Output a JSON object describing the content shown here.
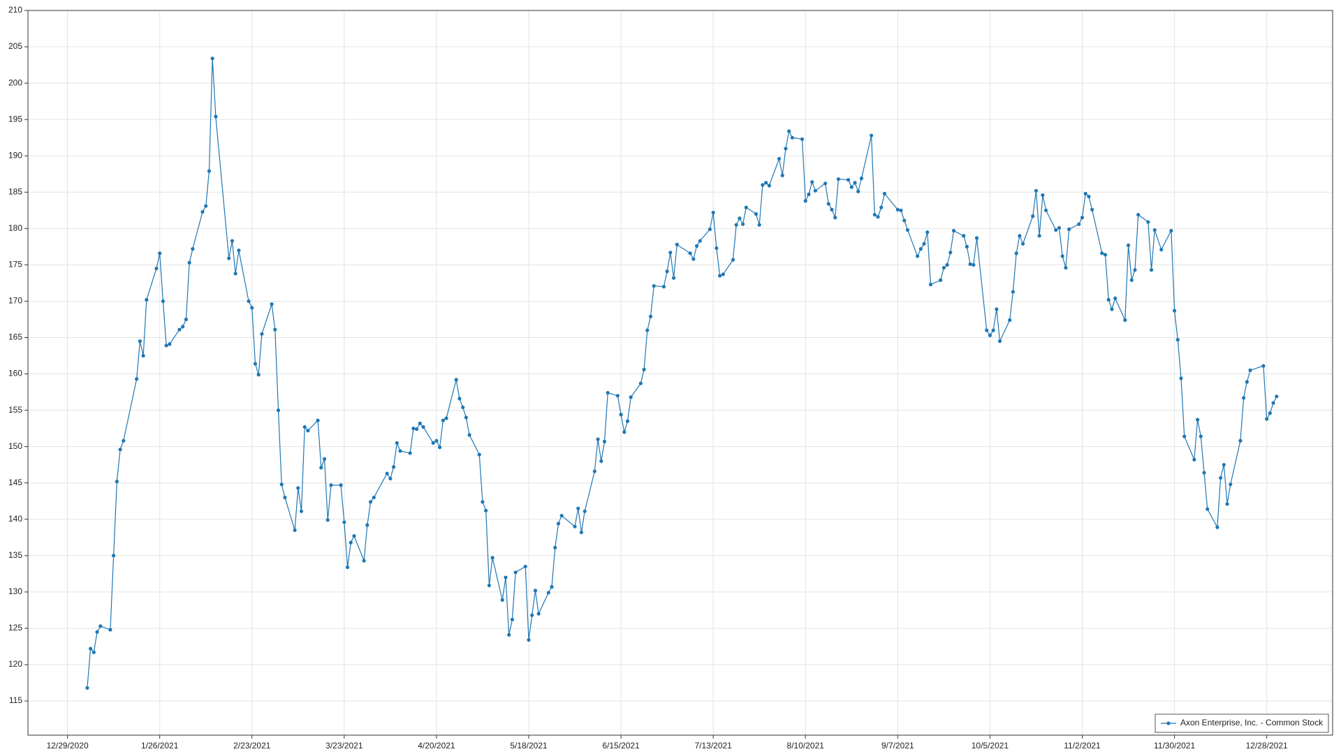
{
  "chart_data": {
    "type": "line",
    "x": [
      "1/4/2021",
      "1/5/2021",
      "1/6/2021",
      "1/7/2021",
      "1/8/2021",
      "1/11/2021",
      "1/12/2021",
      "1/13/2021",
      "1/14/2021",
      "1/15/2021",
      "1/19/2021",
      "1/20/2021",
      "1/21/2021",
      "1/22/2021",
      "1/25/2021",
      "1/26/2021",
      "1/27/2021",
      "1/28/2021",
      "1/29/2021",
      "2/1/2021",
      "2/2/2021",
      "2/3/2021",
      "2/4/2021",
      "2/5/2021",
      "2/8/2021",
      "2/9/2021",
      "2/10/2021",
      "2/11/2021",
      "2/12/2021",
      "2/16/2021",
      "2/17/2021",
      "2/18/2021",
      "2/19/2021",
      "2/22/2021",
      "2/23/2021",
      "2/24/2021",
      "2/25/2021",
      "2/26/2021",
      "3/1/2021",
      "3/2/2021",
      "3/3/2021",
      "3/4/2021",
      "3/5/2021",
      "3/8/2021",
      "3/9/2021",
      "3/10/2021",
      "3/11/2021",
      "3/12/2021",
      "3/15/2021",
      "3/16/2021",
      "3/17/2021",
      "3/18/2021",
      "3/19/2021",
      "3/22/2021",
      "3/23/2021",
      "3/24/2021",
      "3/25/2021",
      "3/26/2021",
      "3/29/2021",
      "3/30/2021",
      "3/31/2021",
      "4/1/2021",
      "4/5/2021",
      "4/6/2021",
      "4/7/2021",
      "4/8/2021",
      "4/9/2021",
      "4/12/2021",
      "4/13/2021",
      "4/14/2021",
      "4/15/2021",
      "4/16/2021",
      "4/19/2021",
      "4/20/2021",
      "4/21/2021",
      "4/22/2021",
      "4/23/2021",
      "4/26/2021",
      "4/27/2021",
      "4/28/2021",
      "4/29/2021",
      "4/30/2021",
      "5/3/2021",
      "5/4/2021",
      "5/5/2021",
      "5/6/2021",
      "5/7/2021",
      "5/10/2021",
      "5/11/2021",
      "5/12/2021",
      "5/13/2021",
      "5/14/2021",
      "5/17/2021",
      "5/18/2021",
      "5/19/2021",
      "5/20/2021",
      "5/21/2021",
      "5/24/2021",
      "5/25/2021",
      "5/26/2021",
      "5/27/2021",
      "5/28/2021",
      "6/1/2021",
      "6/2/2021",
      "6/3/2021",
      "6/4/2021",
      "6/7/2021",
      "6/8/2021",
      "6/9/2021",
      "6/10/2021",
      "6/11/2021",
      "6/14/2021",
      "6/15/2021",
      "6/16/2021",
      "6/17/2021",
      "6/18/2021",
      "6/21/2021",
      "6/22/2021",
      "6/23/2021",
      "6/24/2021",
      "6/25/2021",
      "6/28/2021",
      "6/29/2021",
      "6/30/2021",
      "7/1/2021",
      "7/2/2021",
      "7/6/2021",
      "7/7/2021",
      "7/8/2021",
      "7/9/2021",
      "7/12/2021",
      "7/13/2021",
      "7/14/2021",
      "7/15/2021",
      "7/16/2021",
      "7/19/2021",
      "7/20/2021",
      "7/21/2021",
      "7/22/2021",
      "7/23/2021",
      "7/26/2021",
      "7/27/2021",
      "7/28/2021",
      "7/29/2021",
      "7/30/2021",
      "8/2/2021",
      "8/3/2021",
      "8/4/2021",
      "8/5/2021",
      "8/6/2021",
      "8/9/2021",
      "8/10/2021",
      "8/11/2021",
      "8/12/2021",
      "8/13/2021",
      "8/16/2021",
      "8/17/2021",
      "8/18/2021",
      "8/19/2021",
      "8/20/2021",
      "8/23/2021",
      "8/24/2021",
      "8/25/2021",
      "8/26/2021",
      "8/27/2021",
      "8/30/2021",
      "8/31/2021",
      "9/1/2021",
      "9/2/2021",
      "9/3/2021",
      "9/7/2021",
      "9/8/2021",
      "9/9/2021",
      "9/10/2021",
      "9/13/2021",
      "9/14/2021",
      "9/15/2021",
      "9/16/2021",
      "9/17/2021",
      "9/20/2021",
      "9/21/2021",
      "9/22/2021",
      "9/23/2021",
      "9/24/2021",
      "9/27/2021",
      "9/28/2021",
      "9/29/2021",
      "9/30/2021",
      "10/1/2021",
      "10/4/2021",
      "10/5/2021",
      "10/6/2021",
      "10/7/2021",
      "10/8/2021",
      "10/11/2021",
      "10/12/2021",
      "10/13/2021",
      "10/14/2021",
      "10/15/2021",
      "10/18/2021",
      "10/19/2021",
      "10/20/2021",
      "10/21/2021",
      "10/22/2021",
      "10/25/2021",
      "10/26/2021",
      "10/27/2021",
      "10/28/2021",
      "10/29/2021",
      "11/1/2021",
      "11/2/2021",
      "11/3/2021",
      "11/4/2021",
      "11/5/2021",
      "11/8/2021",
      "11/9/2021",
      "11/10/2021",
      "11/11/2021",
      "11/12/2021",
      "11/15/2021",
      "11/16/2021",
      "11/17/2021",
      "11/18/2021",
      "11/19/2021",
      "11/22/2021",
      "11/23/2021",
      "11/24/2021",
      "11/26/2021",
      "11/29/2021",
      "11/30/2021",
      "12/1/2021",
      "12/2/2021",
      "12/3/2021",
      "12/6/2021",
      "12/7/2021",
      "12/8/2021",
      "12/9/2021",
      "12/10/2021",
      "12/13/2021",
      "12/14/2021",
      "12/15/2021",
      "12/16/2021",
      "12/17/2021",
      "12/20/2021",
      "12/21/2021",
      "12/22/2021",
      "12/23/2021",
      "12/27/2021",
      "12/28/2021",
      "12/29/2021",
      "12/30/2021",
      "12/31/2021"
    ],
    "series": [
      {
        "name": "Axon Enterprise, Inc. - Common Stock",
        "color": "#1f77b4",
        "values": [
          116.8,
          122.2,
          121.7,
          124.5,
          125.3,
          124.8,
          135.0,
          145.2,
          149.6,
          150.8,
          159.3,
          164.5,
          162.5,
          170.2,
          174.5,
          176.6,
          170.0,
          163.9,
          164.1,
          166.1,
          166.5,
          167.5,
          175.3,
          177.2,
          182.3,
          183.1,
          187.9,
          203.4,
          195.4,
          175.9,
          178.3,
          173.8,
          177.0,
          170.0,
          169.1,
          161.4,
          159.9,
          165.5,
          169.6,
          166.1,
          155.0,
          144.8,
          143.0,
          138.5,
          144.3,
          141.1,
          152.7,
          152.2,
          153.6,
          147.1,
          148.3,
          139.9,
          144.7,
          144.7,
          139.6,
          133.4,
          136.8,
          137.7,
          134.3,
          139.2,
          142.4,
          143.0,
          146.3,
          145.6,
          147.2,
          150.5,
          149.4,
          149.1,
          152.5,
          152.4,
          153.2,
          152.7,
          150.5,
          150.8,
          149.9,
          153.6,
          153.9,
          159.2,
          156.6,
          155.4,
          154.0,
          151.6,
          148.9,
          142.4,
          141.2,
          130.9,
          134.7,
          128.9,
          132.0,
          124.1,
          126.2,
          132.7,
          133.5,
          123.4,
          126.8,
          130.2,
          127.0,
          129.9,
          130.7,
          136.1,
          139.4,
          140.5,
          139.0,
          141.5,
          138.2,
          141.1,
          146.6,
          151.0,
          148.0,
          150.7,
          157.4,
          157.0,
          154.4,
          152.0,
          153.5,
          156.8,
          158.7,
          160.6,
          166.0,
          167.9,
          172.1,
          172.0,
          174.1,
          176.7,
          173.2,
          177.8,
          176.6,
          175.8,
          177.6,
          178.3,
          179.9,
          182.2,
          177.3,
          173.5,
          173.7,
          175.7,
          180.5,
          181.4,
          180.6,
          182.9,
          182.0,
          180.5,
          186.0,
          186.3,
          185.9,
          189.6,
          187.3,
          191.0,
          193.4,
          192.5,
          192.3,
          183.8,
          184.7,
          186.4,
          185.2,
          186.2,
          183.4,
          182.6,
          181.5,
          186.8,
          186.7,
          185.7,
          186.3,
          185.1,
          186.9,
          192.8,
          181.9,
          181.6,
          182.9,
          184.8,
          182.6,
          182.5,
          181.1,
          179.8,
          176.2,
          177.2,
          177.9,
          179.5,
          172.3,
          172.9,
          174.6,
          175.0,
          176.7,
          179.7,
          179.0,
          177.5,
          175.1,
          175.0,
          178.7,
          166.0,
          165.3,
          166.0,
          168.9,
          164.5,
          167.4,
          171.3,
          176.6,
          179.0,
          177.9,
          181.7,
          185.2,
          179.0,
          184.6,
          182.5,
          179.8,
          180.1,
          176.2,
          174.6,
          179.9,
          180.6,
          181.5,
          184.8,
          184.4,
          182.6,
          176.6,
          176.4,
          170.2,
          168.9,
          170.4,
          167.4,
          177.7,
          172.9,
          174.3,
          181.9,
          180.9,
          174.3,
          179.8,
          177.1,
          179.7,
          168.7,
          164.7,
          159.4,
          151.4,
          148.2,
          153.7,
          151.4,
          146.4,
          141.4,
          138.9,
          145.7,
          147.5,
          142.1,
          144.8,
          150.8,
          156.7,
          158.9,
          160.5,
          161.1,
          153.8,
          154.6,
          156.0,
          156.9
        ]
      }
    ],
    "xlim": [
      "12/17/2020",
      "1/17/2022"
    ],
    "xticks": [
      "12/29/2020",
      "1/26/2021",
      "2/23/2021",
      "3/23/2021",
      "4/20/2021",
      "5/18/2021",
      "6/15/2021",
      "7/13/2021",
      "8/10/2021",
      "9/7/2021",
      "10/5/2021",
      "11/2/2021",
      "11/30/2021",
      "12/28/2021"
    ],
    "ylim": [
      110.3,
      210
    ],
    "yticks": [
      115,
      120,
      125,
      130,
      135,
      140,
      145,
      150,
      155,
      160,
      165,
      170,
      175,
      180,
      185,
      190,
      195,
      200,
      205,
      210
    ],
    "grid": true,
    "legend": "lower right"
  }
}
